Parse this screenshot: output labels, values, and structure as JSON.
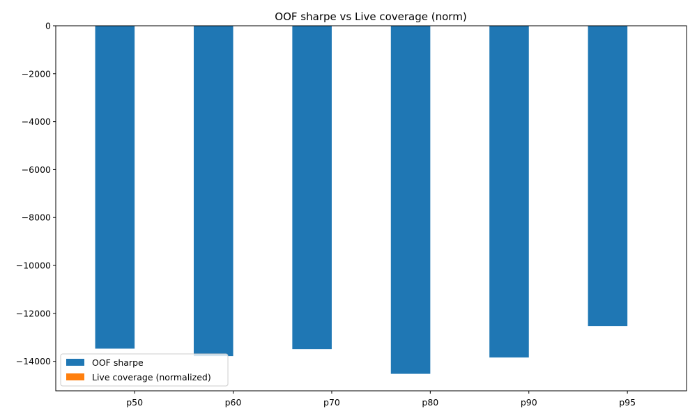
{
  "chart_data": {
    "type": "bar",
    "title": "OOF sharpe vs Live coverage (norm)",
    "xlabel": "",
    "ylabel": "",
    "categories": [
      "p50",
      "p60",
      "p70",
      "p80",
      "p90",
      "p95"
    ],
    "series": [
      {
        "name": "OOF sharpe",
        "color": "#1f77b4",
        "values": [
          -13470,
          -13780,
          -13490,
          -14520,
          -13840,
          -12530
        ]
      },
      {
        "name": "Live coverage (normalized)",
        "color": "#ff7f0e",
        "values": [
          0.3,
          0.5,
          0.6,
          0.8,
          0.9,
          1.0
        ]
      }
    ],
    "ylim": [
      -15230,
      0
    ],
    "yticks": [
      0,
      -2000,
      -4000,
      -6000,
      -8000,
      -10000,
      -12000,
      -14000
    ],
    "ytick_labels": [
      "0",
      "−2000",
      "−4000",
      "−6000",
      "−8000",
      "−10000",
      "−12000",
      "−14000"
    ],
    "grid": false,
    "legend_position": "lower-left"
  }
}
